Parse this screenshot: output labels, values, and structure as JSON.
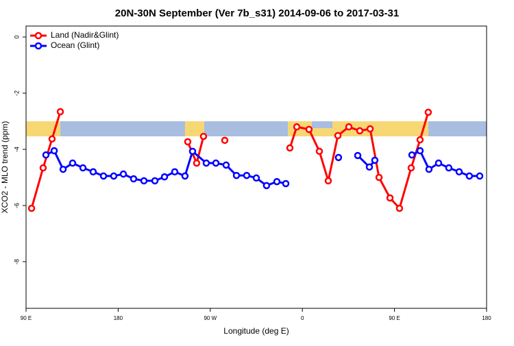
{
  "chart_data": {
    "type": "line",
    "title": "20N-30N September (Ver 7b_s31)   2014-09-06 to 2017-03-31",
    "x_label": "Longitude (deg E)",
    "y_label": "XCO2 - MLO trend (ppm)",
    "xlim": [
      90,
      540
    ],
    "ylim": [
      -9.66,
      0.39
    ],
    "xticks": [
      {
        "value": 90,
        "label": "90 E"
      },
      180,
      {
        "value": 270,
        "label": "90 W"
      },
      {
        "value": 360,
        "label": "0"
      },
      {
        "value": 450,
        "label": "90 E"
      },
      {
        "value": 540,
        "label": "180"
      }
    ],
    "yticks": [
      0,
      -2,
      -4,
      -6,
      -8
    ],
    "legend": "top-left",
    "series": [
      {
        "name": "Land (Nadir&Glint)",
        "color": "#ff0000",
        "x": [
          95.4,
          106.7,
          115.4,
          123.5,
          null,
          248,
          256.7,
          263.4,
          null,
          284.2,
          null,
          347.8,
          354.5,
          366.5,
          376.6,
          385.3,
          394.7,
          405.4,
          416.1,
          426.2,
          434.9,
          445.6,
          454.9,
          466.3,
          475,
          483
        ],
        "values": [
          -6.1,
          -4.66,
          -3.63,
          -2.66,
          null,
          -3.73,
          -4.49,
          -3.54,
          null,
          -3.68,
          null,
          -3.95,
          -3.2,
          -3.29,
          -4.07,
          -5.12,
          -3.51,
          -3.2,
          -3.34,
          -3.27,
          -5.0,
          -5.73,
          -6.1,
          -4.66,
          -3.66,
          -2.68
        ]
      },
      {
        "name": "Ocean (Glint)",
        "color": "#0000ff",
        "x": [
          109.4,
          117.5,
          126.2,
          135.5,
          145.6,
          155.6,
          165.7,
          175.7,
          185.1,
          195.1,
          205.2,
          215.9,
          225.3,
          235.3,
          245.3,
          252.7,
          266.1,
          275.5,
          285.5,
          295.6,
          305.6,
          315,
          325,
          335.1,
          343.8,
          null,
          395.3,
          null,
          414.1,
          425.5,
          430.8,
          null,
          467,
          475,
          483.7,
          493.1,
          503.1,
          513.2,
          523.2,
          533.3
        ],
        "values": [
          -4.2,
          -4.05,
          -4.71,
          -4.49,
          -4.66,
          -4.8,
          -4.95,
          -4.95,
          -4.88,
          -5.05,
          -5.12,
          -5.12,
          -4.98,
          -4.8,
          -4.95,
          -4.07,
          -4.49,
          -4.49,
          -4.56,
          -4.93,
          -4.93,
          -5.02,
          -5.29,
          -5.15,
          -5.22,
          null,
          -4.29,
          null,
          -4.22,
          -4.63,
          -4.39,
          null,
          -4.2,
          -4.05,
          -4.71,
          -4.49,
          -4.66,
          -4.8,
          -4.95,
          -4.95
        ]
      }
    ]
  }
}
